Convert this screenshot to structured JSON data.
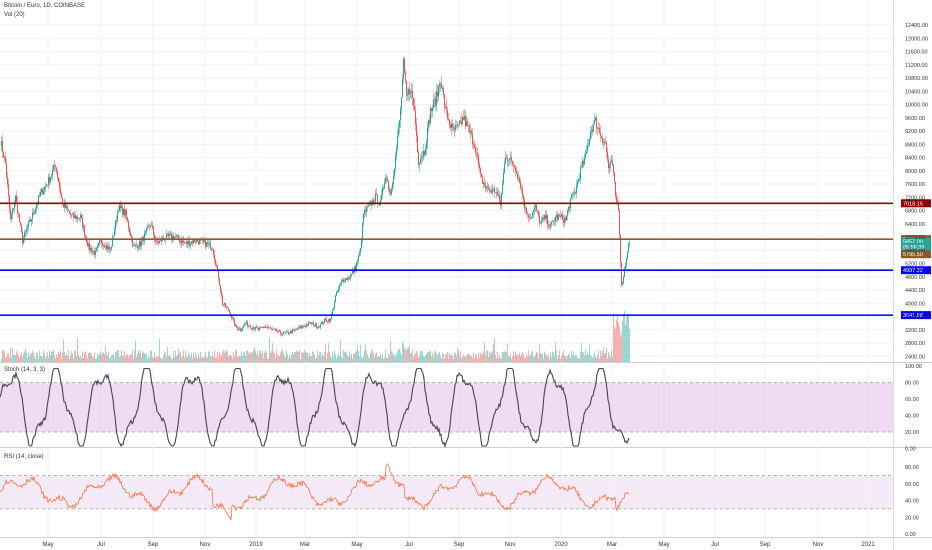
{
  "header": {
    "symbol_label": "Bitcoin / Euro, 1D, COINBASE",
    "volume_label": "Vol (20)"
  },
  "panes": {
    "stoch_label": "Stoch (14, 3, 3)",
    "rsi_label": "RSI (14, close)"
  },
  "colors": {
    "up": "#26a69a",
    "down": "#ef5350",
    "stoch_line": "#434651",
    "stoch_band": "#e1bee7",
    "rsi_line": "#ff7043",
    "rsi_band": "#f3e5f5",
    "line_dark_red": "#8b0000",
    "line_brown": "#8b5a2b",
    "line_blue": "#0000ff"
  },
  "chart_data": [
    {
      "type": "candlestick",
      "title": "Bitcoin / Euro, 1D, COINBASE",
      "x_ticks": [
        "May",
        "Jul",
        "Sep",
        "Nov",
        "2019",
        "Mar",
        "May",
        "Jul",
        "Sep",
        "Nov",
        "2020",
        "Mar",
        "May",
        "Jul",
        "Sep",
        "Nov",
        "2021"
      ],
      "y_ticks": [
        2400,
        2800,
        3200,
        3600,
        4000,
        4400,
        4800,
        5200,
        5600,
        6000,
        6400,
        6800,
        7200,
        7600,
        8000,
        8400,
        8800,
        9200,
        9600,
        10000,
        10400,
        10800,
        11200,
        11600,
        12000,
        12400
      ],
      "ylim": [
        2200,
        12600
      ],
      "price_path": [
        [
          0,
          8900
        ],
        [
          5,
          8200
        ],
        [
          10,
          6500
        ],
        [
          15,
          7200
        ],
        [
          22,
          5900
        ],
        [
          30,
          6500
        ],
        [
          40,
          7300
        ],
        [
          48,
          7700
        ],
        [
          55,
          8200
        ],
        [
          62,
          7000
        ],
        [
          72,
          6600
        ],
        [
          80,
          6600
        ],
        [
          88,
          5700
        ],
        [
          95,
          5500
        ],
        [
          100,
          5900
        ],
        [
          110,
          5600
        ],
        [
          118,
          6900
        ],
        [
          125,
          6700
        ],
        [
          133,
          5700
        ],
        [
          140,
          5800
        ],
        [
          150,
          6400
        ],
        [
          156,
          5800
        ],
        [
          165,
          6000
        ],
        [
          175,
          6000
        ],
        [
          185,
          5800
        ],
        [
          195,
          5900
        ],
        [
          205,
          5800
        ],
        [
          212,
          5700
        ],
        [
          218,
          4800
        ],
        [
          222,
          4000
        ],
        [
          228,
          3800
        ],
        [
          235,
          3300
        ],
        [
          240,
          3200
        ],
        [
          245,
          3400
        ],
        [
          250,
          3300
        ],
        [
          258,
          3200
        ],
        [
          265,
          3300
        ],
        [
          272,
          3200
        ],
        [
          280,
          3100
        ],
        [
          288,
          3100
        ],
        [
          295,
          3200
        ],
        [
          302,
          3300
        ],
        [
          310,
          3400
        ],
        [
          318,
          3300
        ],
        [
          325,
          3500
        ],
        [
          330,
          3500
        ],
        [
          335,
          4200
        ],
        [
          342,
          4700
        ],
        [
          350,
          4800
        ],
        [
          355,
          5100
        ],
        [
          360,
          5600
        ],
        [
          363,
          6700
        ],
        [
          368,
          6900
        ],
        [
          375,
          7200
        ],
        [
          380,
          7000
        ],
        [
          385,
          7900
        ],
        [
          390,
          7300
        ],
        [
          395,
          8400
        ],
        [
          400,
          9800
        ],
        [
          403,
          11200
        ],
        [
          406,
          10200
        ],
        [
          410,
          10500
        ],
        [
          414,
          9800
        ],
        [
          418,
          8300
        ],
        [
          424,
          8600
        ],
        [
          430,
          9800
        ],
        [
          436,
          10200
        ],
        [
          440,
          10800
        ],
        [
          445,
          9800
        ],
        [
          452,
          9200
        ],
        [
          458,
          9300
        ],
        [
          463,
          9600
        ],
        [
          470,
          9100
        ],
        [
          475,
          8700
        ],
        [
          480,
          7800
        ],
        [
          485,
          7500
        ],
        [
          490,
          7400
        ],
        [
          495,
          7400
        ],
        [
          500,
          7000
        ],
        [
          505,
          8500
        ],
        [
          510,
          8300
        ],
        [
          515,
          8100
        ],
        [
          520,
          7600
        ],
        [
          525,
          6800
        ],
        [
          530,
          6600
        ],
        [
          535,
          6900
        ],
        [
          540,
          6400
        ],
        [
          545,
          6600
        ],
        [
          550,
          6300
        ],
        [
          555,
          6600
        ],
        [
          560,
          6600
        ],
        [
          565,
          6500
        ],
        [
          570,
          7100
        ],
        [
          575,
          7400
        ],
        [
          580,
          8000
        ],
        [
          585,
          8400
        ],
        [
          590,
          9200
        ],
        [
          595,
          9500
        ],
        [
          600,
          9100
        ],
        [
          605,
          8800
        ],
        [
          608,
          8100
        ],
        [
          612,
          8200
        ],
        [
          615,
          7200
        ],
        [
          618,
          6900
        ],
        [
          621,
          4500
        ],
        [
          624,
          5000
        ],
        [
          627,
          5600
        ],
        [
          629,
          5900
        ]
      ],
      "horizontal_levels": [
        {
          "price": 7018.15,
          "label": "7018.15",
          "color": "#8b0000"
        },
        {
          "price": 5935,
          "label": "5935",
          "color": "#8b5a2b"
        },
        {
          "price": 4997.22,
          "label": "4997.22",
          "color": "#0000ff"
        },
        {
          "price": 3641.58,
          "label": "3641.58",
          "color": "#0000ff"
        }
      ],
      "price_labels": [
        {
          "price": 5857.0,
          "label": "5857.00",
          "color": "#26a69a"
        },
        {
          "price": 5700,
          "label": "05:56:39",
          "color": "#26a69a"
        },
        {
          "price": 5480,
          "label": "5795.50",
          "color": "#8b5a2b"
        }
      ]
    },
    {
      "type": "line",
      "title": "Stoch (14, 3, 3)",
      "y_ticks": [
        0,
        20,
        40,
        60,
        80,
        100
      ],
      "ylim": [
        -5,
        105
      ],
      "band": [
        20,
        80
      ]
    },
    {
      "type": "line",
      "title": "RSI (14, close)",
      "y_ticks": [
        0,
        20,
        40,
        60,
        80
      ],
      "ylim": [
        0,
        85
      ],
      "band": [
        30,
        70
      ]
    }
  ]
}
